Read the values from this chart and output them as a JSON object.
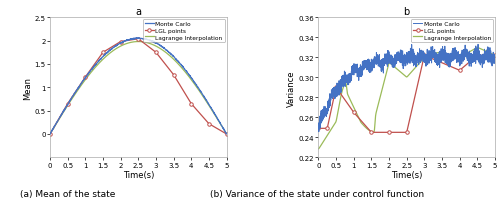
{
  "fig_width": 5.0,
  "fig_height": 2.03,
  "dpi": 100,
  "subplot_a": {
    "title": "a",
    "xlabel": "Time(s)",
    "ylabel": "Mean",
    "xlim": [
      0,
      5
    ],
    "ylim": [
      -0.5,
      2.5
    ],
    "xticks": [
      0,
      0.5,
      1,
      1.5,
      2,
      2.5,
      3,
      3.5,
      4,
      4.5,
      5
    ],
    "yticks": [
      0,
      0.5,
      1,
      1.5,
      2,
      2.5
    ],
    "mc_color": "#4472C4",
    "lgl_color": "#C0504D",
    "lag_color": "#9BBB59",
    "lgl_points_x": [
      0,
      0.5,
      1.0,
      1.5,
      2.0,
      2.5,
      3.0,
      3.5,
      4.0,
      4.5,
      5.0
    ],
    "lgl_points_y": [
      0.0,
      0.65,
      1.22,
      1.75,
      1.98,
      2.04,
      1.75,
      1.27,
      0.65,
      0.22,
      0.0
    ]
  },
  "subplot_b": {
    "title": "b",
    "xlabel": "Time(s)",
    "ylabel": "Variance",
    "xlim": [
      0,
      5
    ],
    "ylim": [
      0.22,
      0.36
    ],
    "xticks": [
      0,
      0.5,
      1,
      1.5,
      2,
      2.5,
      3,
      3.5,
      4,
      4.5,
      5
    ],
    "yticks": [
      0.22,
      0.24,
      0.26,
      0.28,
      0.3,
      0.32,
      0.34,
      0.36
    ],
    "mc_color": "#4472C4",
    "lgl_color": "#C0504D",
    "lag_color": "#9BBB59",
    "lgl_points_x": [
      0.0,
      0.25,
      0.5,
      1.0,
      1.5,
      2.0,
      2.5,
      3.0,
      4.0,
      4.5,
      5.0
    ],
    "lgl_points_y": [
      0.249,
      0.249,
      0.29,
      0.265,
      0.245,
      0.245,
      0.245,
      0.322,
      0.307,
      0.322,
      0.322
    ]
  },
  "caption_a": "(a) Mean of the state",
  "caption_b": "(b) Variance of the state under control function",
  "legend_labels": [
    "Monte Carlo",
    "LGL points",
    "Lagrange Interpolation"
  ]
}
